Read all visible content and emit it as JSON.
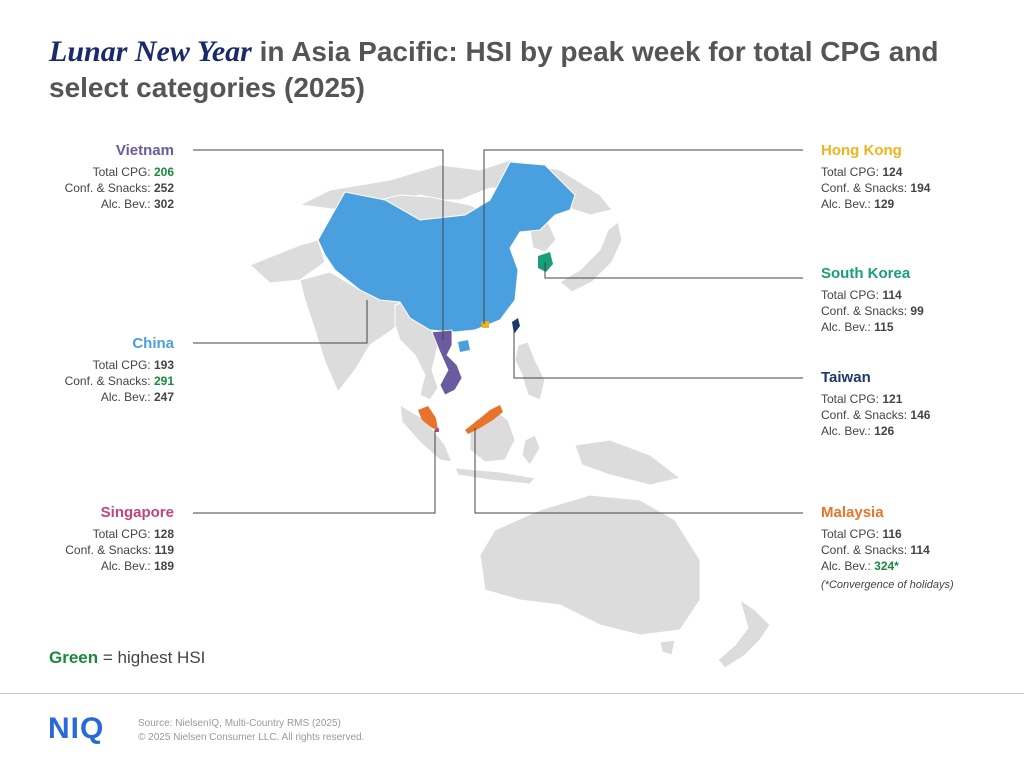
{
  "title": {
    "emphasis": "Lunar New Year",
    "rest": " in Asia Pacific: HSI by peak week for total CPG and select categories (2025)"
  },
  "countries": {
    "vietnam": {
      "name": "Vietnam",
      "color": "#6a5a9e",
      "total_label": "Total CPG:",
      "total": "206",
      "conf_label": "Conf. & Snacks:",
      "conf": "252",
      "alc_label": "Alc. Bev.:",
      "alc": "302"
    },
    "china": {
      "name": "China",
      "color": "#4aa0df",
      "total_label": "Total CPG:",
      "total": "193",
      "conf_label": "Conf. & Snacks:",
      "conf": "291",
      "alc_label": "Alc. Bev.:",
      "alc": "247"
    },
    "singapore": {
      "name": "Singapore",
      "color": "#c0467a",
      "total_label": "Total CPG:",
      "total": "128",
      "conf_label": "Conf. & Snacks:",
      "conf": "119",
      "alc_label": "Alc. Bev.:",
      "alc": "189"
    },
    "hong_kong": {
      "name": "Hong Kong",
      "color": "#f0b31c",
      "total_label": "Total CPG:",
      "total": "124",
      "conf_label": "Conf. & Snacks:",
      "conf": "194",
      "alc_label": "Alc. Bev.:",
      "alc": "129"
    },
    "south_korea": {
      "name": "South Korea",
      "color": "#1a9e7a",
      "total_label": "Total CPG:",
      "total": "114",
      "conf_label": "Conf. & Snacks:",
      "conf": "99",
      "alc_label": "Alc. Bev.:",
      "alc": "115"
    },
    "taiwan": {
      "name": "Taiwan",
      "color": "#1b3a6b",
      "total_label": "Total CPG:",
      "total": "121",
      "conf_label": "Conf. & Snacks:",
      "conf": "146",
      "alc_label": "Alc. Bev.:",
      "alc": "126"
    },
    "malaysia": {
      "name": "Malaysia",
      "color": "#e8742c",
      "total_label": "Total CPG:",
      "total": "116",
      "conf_label": "Conf. & Snacks:",
      "conf": "114",
      "alc_label": "Alc. Bev.:",
      "alc": "324*",
      "note": "(*Convergence of holidays)"
    }
  },
  "highest": {
    "vietnam": "total",
    "china": "conf",
    "malaysia": "alc"
  },
  "legend": {
    "green_word": "Green",
    "rest": " = highest  HSI"
  },
  "colors": {
    "highlight_green": "#1a8a3a",
    "land_gray": "#dcdcdc",
    "title_accent": "#1b2a6b",
    "brand_blue": "#2a6ad8"
  },
  "footer": {
    "logo": "NIQ",
    "source": "Source: NielsenIQ, Multi-Country RMS (2025)",
    "copyright": "© 2025 Nielsen Consumer LLC. All rights reserved."
  }
}
